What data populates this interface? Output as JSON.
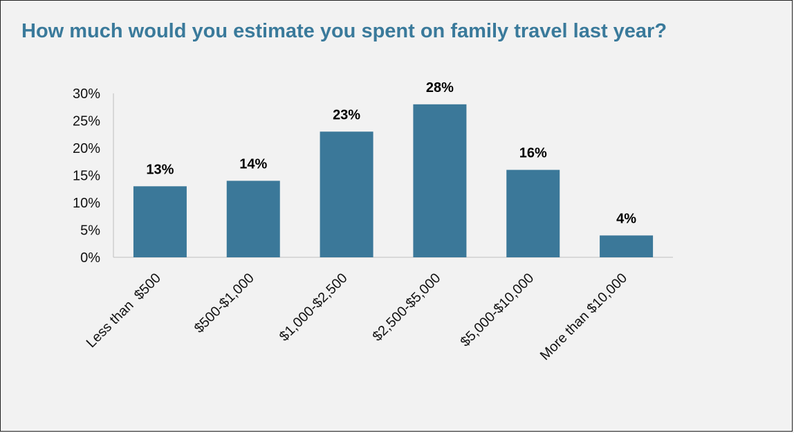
{
  "chart_data": {
    "type": "bar",
    "title": "How much would you estimate you spent on family travel last year?",
    "categories": [
      "Less than  $500",
      "$500-$1,000",
      "$1,000-$2,500",
      "$2,500-$5,000",
      "$5,000-$10,000",
      "More than $10,000"
    ],
    "values": [
      13,
      14,
      23,
      28,
      16,
      4
    ],
    "data_labels": [
      "13%",
      "14%",
      "23%",
      "28%",
      "16%",
      "4%"
    ],
    "ylim": [
      0,
      30
    ],
    "yticks": [
      0,
      5,
      10,
      15,
      20,
      25,
      30
    ],
    "ytick_labels": [
      "0%",
      "5%",
      "10%",
      "15%",
      "20%",
      "25%",
      "30%"
    ],
    "bar_color": "#3b7899",
    "grid": false,
    "legend": "none"
  }
}
